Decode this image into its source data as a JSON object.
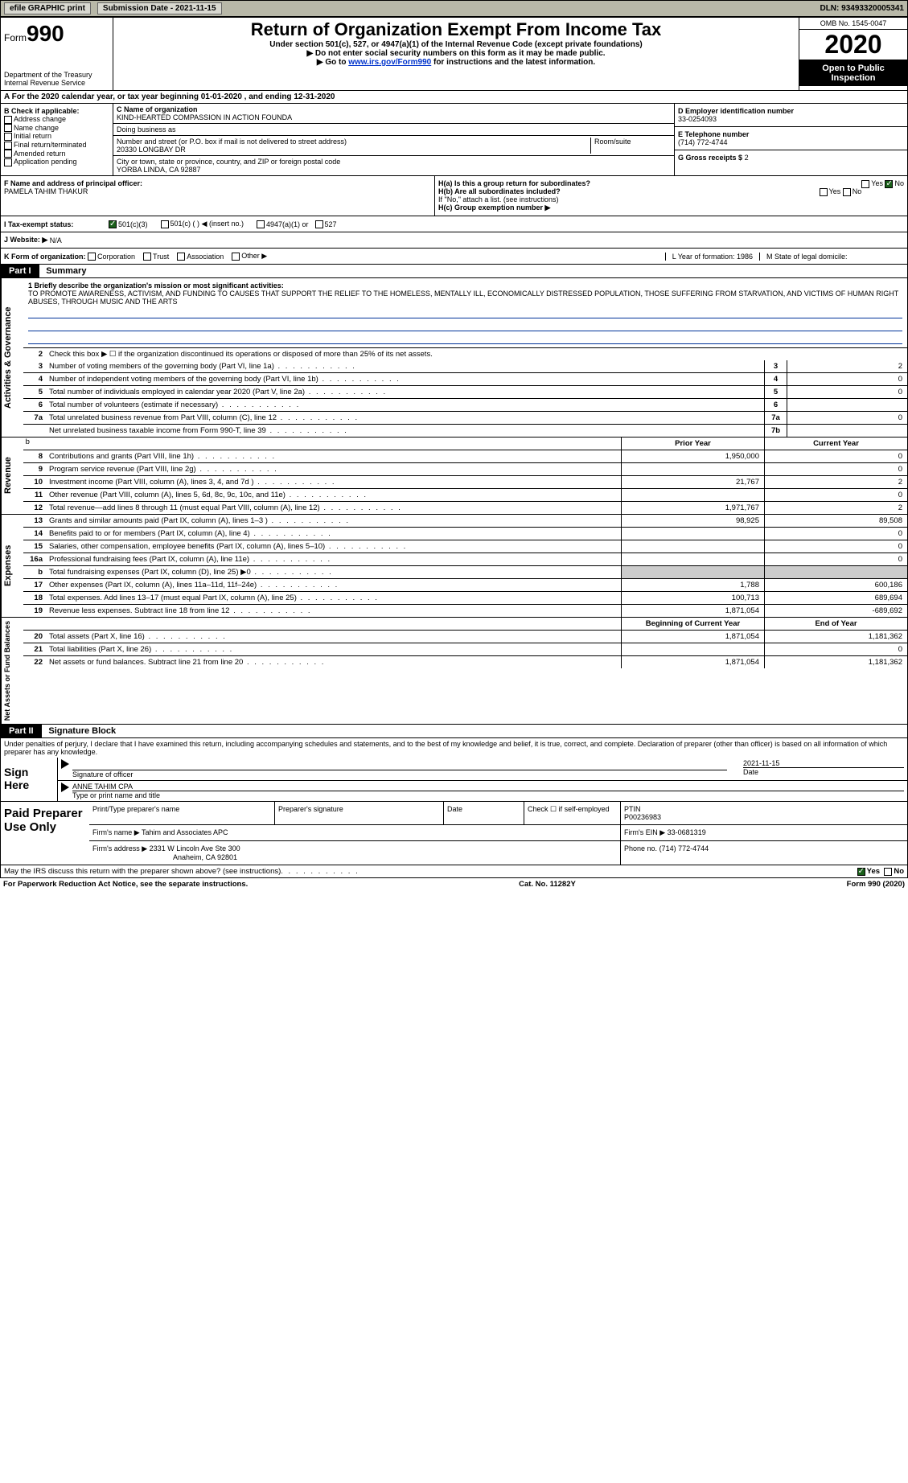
{
  "topbar": {
    "efile": "efile GRAPHIC print",
    "submission": "Submission Date - 2021-11-15",
    "dln": "DLN: 93493320005341"
  },
  "header": {
    "form_label": "Form",
    "form_num": "990",
    "title": "Return of Organization Exempt From Income Tax",
    "subtitle": "Under section 501(c), 527, or 4947(a)(1) of the Internal Revenue Code (except private foundations)",
    "note1": "▶ Do not enter social security numbers on this form as it may be made public.",
    "note2_pre": "▶ Go to ",
    "note2_link": "www.irs.gov/Form990",
    "note2_post": " for instructions and the latest information.",
    "dept": "Department of the Treasury",
    "irs": "Internal Revenue Service",
    "omb": "OMB No. 1545-0047",
    "year": "2020",
    "otp": "Open to Public Inspection"
  },
  "period": "A For the 2020 calendar year, or tax year beginning 01-01-2020   , and ending 12-31-2020",
  "section_b": {
    "title": "B Check if applicable:",
    "items": [
      "Address change",
      "Name change",
      "Initial return",
      "Final return/terminated",
      "Amended return",
      "Application pending"
    ]
  },
  "section_c": {
    "name_label": "C Name of organization",
    "name": "KIND-HEARTED COMPASSION IN ACTION FOUNDA",
    "dba": "Doing business as",
    "addr_label": "Number and street (or P.O. box if mail is not delivered to street address)",
    "addr": "20330 LONGBAY DR",
    "room": "Room/suite",
    "city_label": "City or town, state or province, country, and ZIP or foreign postal code",
    "city": "YORBA LINDA, CA  92887"
  },
  "section_d": {
    "ein_label": "D Employer identification number",
    "ein": "33-0254093",
    "tel_label": "E Telephone number",
    "tel": "(714) 772-4744",
    "gross_label": "G Gross receipts $",
    "gross": "2"
  },
  "section_f": {
    "label": "F  Name and address of principal officer:",
    "name": "PAMELA TAHIM THAKUR"
  },
  "section_h": {
    "ha": "H(a)  Is this a group return for subordinates?",
    "hb": "H(b)  Are all subordinates included?",
    "hb_note": "If \"No,\" attach a list. (see instructions)",
    "hc": "H(c)  Group exemption number ▶",
    "yes": "Yes",
    "no": "No"
  },
  "tax_status": {
    "label": "I  Tax-exempt status:",
    "o1": "501(c)(3)",
    "o2": "501(c) (  ) ◀ (insert no.)",
    "o3": "4947(a)(1) or",
    "o4": "527"
  },
  "website": {
    "label": "J  Website: ▶",
    "val": "N/A"
  },
  "k_row": {
    "label": "K Form of organization:",
    "opts": [
      "Corporation",
      "Trust",
      "Association",
      "Other ▶"
    ],
    "l": "L Year of formation: 1986",
    "m": "M State of legal domicile:"
  },
  "part1": {
    "hdr": "Part I",
    "title": "Summary"
  },
  "mission": {
    "label": "1  Briefly describe the organization's mission or most significant activities:",
    "text": "TO PROMOTE AWARENESS, ACTIVISM, AND FUNDING TO CAUSES THAT SUPPORT THE RELIEF TO THE HOMELESS, MENTALLY ILL, ECONOMICALLY DISTRESSED POPULATION, THOSE SUFFERING FROM STARVATION, AND VICTIMS OF HUMAN RIGHT ABUSES, THROUGH MUSIC AND THE ARTS"
  },
  "gov_lines": {
    "l2": "Check this box ▶ ☐ if the organization discontinued its operations or disposed of more than 25% of its net assets.",
    "l3": {
      "num": "3",
      "label": "Number of voting members of the governing body (Part VI, line 1a)",
      "box": "3",
      "val": "2"
    },
    "l4": {
      "num": "4",
      "label": "Number of independent voting members of the governing body (Part VI, line 1b)",
      "box": "4",
      "val": "0"
    },
    "l5": {
      "num": "5",
      "label": "Total number of individuals employed in calendar year 2020 (Part V, line 2a)",
      "box": "5",
      "val": "0"
    },
    "l6": {
      "num": "6",
      "label": "Total number of volunteers (estimate if necessary)",
      "box": "6",
      "val": ""
    },
    "l7a": {
      "num": "7a",
      "label": "Total unrelated business revenue from Part VIII, column (C), line 12",
      "box": "7a",
      "val": "0"
    },
    "l7b": {
      "num": "",
      "label": "Net unrelated business taxable income from Form 990-T, line 39",
      "box": "7b",
      "val": ""
    }
  },
  "col_hdrs": {
    "prior": "Prior Year",
    "current": "Current Year"
  },
  "revenue": {
    "tab": "Revenue",
    "rows": [
      {
        "n": "8",
        "l": "Contributions and grants (Part VIII, line 1h)",
        "p": "1,950,000",
        "c": "0"
      },
      {
        "n": "9",
        "l": "Program service revenue (Part VIII, line 2g)",
        "p": "",
        "c": "0"
      },
      {
        "n": "10",
        "l": "Investment income (Part VIII, column (A), lines 3, 4, and 7d )",
        "p": "21,767",
        "c": "2"
      },
      {
        "n": "11",
        "l": "Other revenue (Part VIII, column (A), lines 5, 6d, 8c, 9c, 10c, and 11e)",
        "p": "",
        "c": "0"
      },
      {
        "n": "12",
        "l": "Total revenue—add lines 8 through 11 (must equal Part VIII, column (A), line 12)",
        "p": "1,971,767",
        "c": "2"
      }
    ]
  },
  "expenses": {
    "tab": "Expenses",
    "rows": [
      {
        "n": "13",
        "l": "Grants and similar amounts paid (Part IX, column (A), lines 1–3 )",
        "p": "98,925",
        "c": "89,508"
      },
      {
        "n": "14",
        "l": "Benefits paid to or for members (Part IX, column (A), line 4)",
        "p": "",
        "c": "0"
      },
      {
        "n": "15",
        "l": "Salaries, other compensation, employee benefits (Part IX, column (A), lines 5–10)",
        "p": "",
        "c": "0"
      },
      {
        "n": "16a",
        "l": "Professional fundraising fees (Part IX, column (A), line 11e)",
        "p": "",
        "c": "0"
      },
      {
        "n": "b",
        "l": "Total fundraising expenses (Part IX, column (D), line 25) ▶0",
        "p": "grey",
        "c": "grey"
      },
      {
        "n": "17",
        "l": "Other expenses (Part IX, column (A), lines 11a–11d, 11f–24e)",
        "p": "1,788",
        "c": "600,186"
      },
      {
        "n": "18",
        "l": "Total expenses. Add lines 13–17 (must equal Part IX, column (A), line 25)",
        "p": "100,713",
        "c": "689,694"
      },
      {
        "n": "19",
        "l": "Revenue less expenses. Subtract line 18 from line 12",
        "p": "1,871,054",
        "c": "-689,692"
      }
    ]
  },
  "netassets": {
    "tab": "Net Assets or Fund Balances",
    "hdr_b": "Beginning of Current Year",
    "hdr_e": "End of Year",
    "rows": [
      {
        "n": "20",
        "l": "Total assets (Part X, line 16)",
        "p": "1,871,054",
        "c": "1,181,362"
      },
      {
        "n": "21",
        "l": "Total liabilities (Part X, line 26)",
        "p": "",
        "c": "0"
      },
      {
        "n": "22",
        "l": "Net assets or fund balances. Subtract line 21 from line 20",
        "p": "1,871,054",
        "c": "1,181,362"
      }
    ]
  },
  "part2": {
    "hdr": "Part II",
    "title": "Signature Block"
  },
  "sig": {
    "decl": "Under penalties of perjury, I declare that I have examined this return, including accompanying schedules and statements, and to the best of my knowledge and belief, it is true, correct, and complete. Declaration of preparer (other than officer) is based on all information of which preparer has any knowledge.",
    "sign_here": "Sign Here",
    "sig_officer": "Signature of officer",
    "date": "Date",
    "date_val": "2021-11-15",
    "name": "ANNE TAHIM  CPA",
    "name_label": "Type or print name and title"
  },
  "prep": {
    "label": "Paid Preparer Use Only",
    "h1": "Print/Type preparer's name",
    "h2": "Preparer's signature",
    "h3": "Date",
    "h4": "Check ☐ if self-employed",
    "h5": "PTIN",
    "ptin": "P00236983",
    "firm_label": "Firm's name    ▶",
    "firm": "Tahim and Associates APC",
    "ein_label": "Firm's EIN ▶",
    "ein": "33-0681319",
    "addr_label": "Firm's address ▶",
    "addr1": "2331 W Lincoln Ave Ste 300",
    "addr2": "Anaheim, CA  92801",
    "phone_label": "Phone no.",
    "phone": "(714) 772-4744"
  },
  "irs_q": "May the IRS discuss this return with the preparer shown above? (see instructions)",
  "footer": {
    "left": "For Paperwork Reduction Act Notice, see the separate instructions.",
    "mid": "Cat. No. 11282Y",
    "right": "Form 990 (2020)"
  }
}
